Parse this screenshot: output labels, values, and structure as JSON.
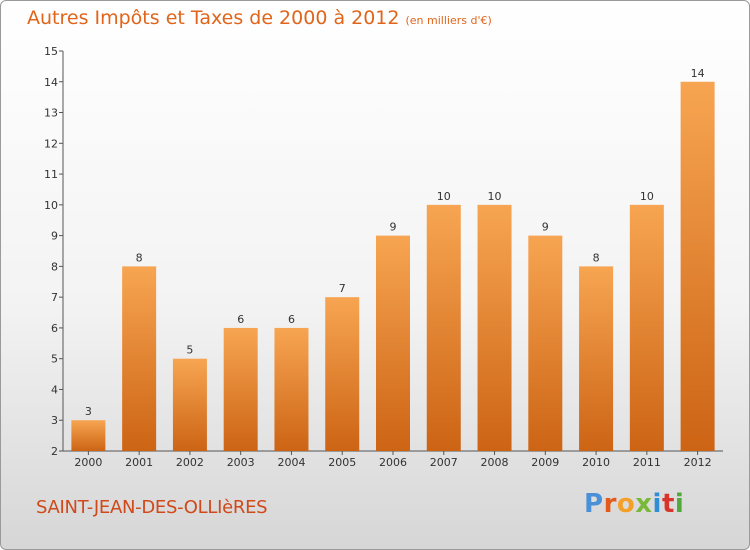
{
  "header": {
    "title": "Autres Impôts et Taxes de 2000 à 2012",
    "subtitle": "(en milliers d'€)"
  },
  "footer": {
    "commune": "SAINT-JEAN-DES-OLLIèRES",
    "brand": "Proxiti"
  },
  "colors": {
    "title": "#e0651a",
    "commune": "#d0491a",
    "bar_top": "#f7a552",
    "bar_bottom": "#cc6414",
    "brand_letters": [
      "#4a90d9",
      "#e35a1a",
      "#f2a02a",
      "#7ab83a",
      "#2f8fd6",
      "#d9342b",
      "#52a83a"
    ]
  },
  "chart_data": {
    "type": "bar",
    "categories": [
      "2000",
      "2001",
      "2002",
      "2003",
      "2004",
      "2005",
      "2006",
      "2007",
      "2008",
      "2009",
      "2010",
      "2011",
      "2012"
    ],
    "values": [
      3,
      8,
      5,
      6,
      6,
      7,
      9,
      10,
      10,
      9,
      8,
      10,
      14
    ],
    "title": "Autres Impôts et Taxes de 2000 à 2012",
    "xlabel": "",
    "ylabel": "",
    "ylim": [
      2,
      15
    ],
    "yticks": [
      2,
      3,
      4,
      5,
      6,
      7,
      8,
      9,
      10,
      11,
      12,
      13,
      14,
      15
    ],
    "grid": false,
    "data_labels": true
  }
}
